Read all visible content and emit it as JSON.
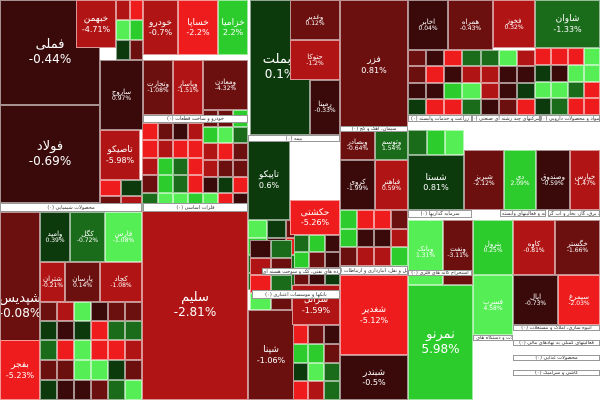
{
  "colors": {
    "dark_red": "#3a0a0a",
    "deep_red": "#6b0f0f",
    "red": "#b01414",
    "bright_red": "#ee1c1c",
    "dark_green": "#0d3a0d",
    "green": "#1a6b1a",
    "bright_green": "#2ccc2c",
    "lime": "#55ee55"
  },
  "tiles": [
    {
      "symbol": "فملی",
      "change": "-0.44%"
    },
    {
      "symbol": "فولاد",
      "change": "-0.69%"
    },
    {
      "symbol": "شپدیس",
      "change": "-0.08%"
    },
    {
      "symbol": "سلیم",
      "change": "-2.81%"
    },
    {
      "symbol": "وبملت",
      "change": "0.1%"
    },
    {
      "symbol": "فزر",
      "change": "0.81%"
    },
    {
      "symbol": "شستا",
      "change": "0.81%"
    },
    {
      "symbol": "تاپیکو",
      "change": "0.6%"
    },
    {
      "symbol": "شغدیر",
      "change": "-5.12%"
    },
    {
      "symbol": "نمرنو",
      "change": "5.98%"
    },
    {
      "symbol": "خودرو",
      "change": "-0.7%"
    },
    {
      "symbol": "خساپا",
      "change": "-2.2%"
    },
    {
      "symbol": "خزامیا",
      "change": "2.2%"
    },
    {
      "symbol": "خبهمن",
      "change": "-4.71%"
    },
    {
      "symbol": "شپنا",
      "change": "-1.06%"
    },
    {
      "symbol": "شرانل",
      "change": "-1.59%"
    },
    {
      "symbol": "شبندر",
      "change": "-0.5%"
    },
    {
      "symbol": "بفجر",
      "change": "-5.23%"
    },
    {
      "symbol": "شاوان",
      "change": "-1.33%"
    },
    {
      "symbol": "تاصیکو",
      "change": "-5.98%"
    },
    {
      "symbol": "حکشتی",
      "change": "-5.26%"
    },
    {
      "symbol": "وتجارت",
      "change": "-1.08%"
    },
    {
      "symbol": "وپاسار",
      "change": "-1.51%"
    },
    {
      "symbol": "ومعادن",
      "change": "-4.32%"
    },
    {
      "symbol": "وامید",
      "change": "0.39%"
    },
    {
      "symbol": "کگل",
      "change": "-0.72%"
    },
    {
      "symbol": "فارس",
      "change": "-1.08%"
    },
    {
      "symbol": "شتران",
      "change": "-0.21%"
    },
    {
      "symbol": "پارسان",
      "change": "0.14%"
    },
    {
      "symbol": "کچاد",
      "change": "-1.08%"
    },
    {
      "symbol": "وغدیر",
      "change": "0.12%"
    },
    {
      "symbol": "حتوکا",
      "change": "-1.2%"
    },
    {
      "symbol": "رمپنا",
      "change": "-0.33%"
    },
    {
      "symbol": "اخابر",
      "change": "0.04%"
    },
    {
      "symbol": "همراه",
      "change": "-0.43%"
    },
    {
      "symbol": "فخوز",
      "change": "0.32%"
    },
    {
      "symbol": "وبصادر",
      "change": "-0.64%"
    },
    {
      "symbol": "وتوسم",
      "change": "1.54%"
    },
    {
      "symbol": "شبریز",
      "change": "-2.12%"
    },
    {
      "symbol": "دی",
      "change": "2.09%"
    },
    {
      "symbol": "وصندوق",
      "change": "-0.59%"
    },
    {
      "symbol": "خپارس",
      "change": "-1.47%"
    },
    {
      "symbol": "کروی",
      "change": "-1.99%"
    },
    {
      "symbol": "فباهنر",
      "change": "0.59%"
    },
    {
      "symbol": "وبانک",
      "change": "1.31%"
    },
    {
      "symbol": "ونفت",
      "change": "-3.11%"
    },
    {
      "symbol": "پترول",
      "change": "0.25%"
    },
    {
      "symbol": "کاوه",
      "change": "-0.81%"
    },
    {
      "symbol": "خگستر",
      "change": "-1.66%"
    },
    {
      "symbol": "فسرب",
      "change": "4.58%"
    },
    {
      "symbol": "اپال",
      "change": "-0.73%"
    },
    {
      "symbol": "سیمرغ",
      "change": "-2.03%"
    },
    {
      "symbol": "ساروج",
      "change": "0.97%"
    }
  ],
  "sectors": [
    {
      "label": "محصولات شیمیایی (۰)"
    },
    {
      "label": "فلزات اساسی (۰)"
    },
    {
      "label": "خودرو و ساخت قطعات (۰)"
    },
    {
      "label": "بیمه (۰)"
    },
    {
      "label": "بانکها و موسسات اعتباری (۰)"
    },
    {
      "label": "فرآورده های نفتی، کک و سوخت هسته ای (۰)"
    },
    {
      "label": "حمل و نقل، انبارداری و ارتباطات (۰)"
    },
    {
      "label": "سرمایه گذاریها (۰)"
    },
    {
      "label": "سیمان، آهک و گچ (۰)"
    },
    {
      "label": "استخراج کانه های فلزی (۰)"
    },
    {
      "label": "زراعت و خدمات وابسته (۰)"
    },
    {
      "label": "شرکتهای چند رشته ای صنعتی (۰)"
    },
    {
      "label": "مواد و محصولات دارویی (۰)"
    },
    {
      "label": "رایانه و فعالیتهای وابسته (۰)"
    },
    {
      "label": "عرضه برق، گاز، بخار و آب گرم (۰)"
    },
    {
      "label": "انبوه سازی، املاک و مستغلات (۰)"
    },
    {
      "label": "فعالیتهای کمکی به نهادهای مالی (۰)"
    },
    {
      "label": "محصولات غذایی (۰)"
    },
    {
      "label": "ماشین آلات و دستگاه های برقی (۰)"
    },
    {
      "label": "کاشی و سرامیک (۰)"
    }
  ]
}
